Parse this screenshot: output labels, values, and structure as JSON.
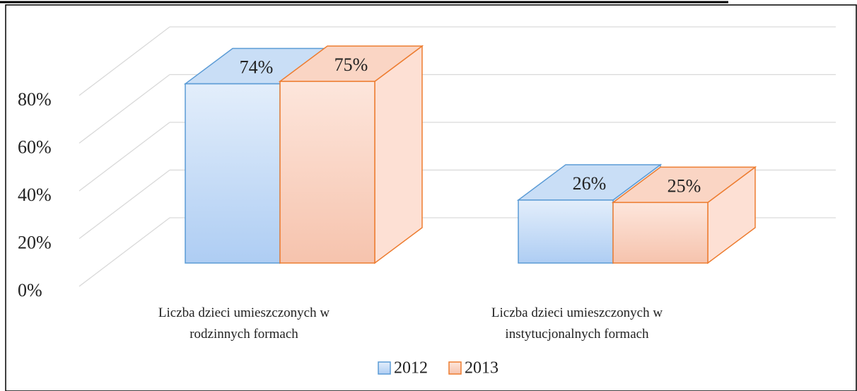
{
  "chart_data": {
    "type": "bar3d",
    "categories": [
      "Liczba dzieci umieszczonych w rodzinnych formach",
      "Liczba dzieci umieszczonych w instytucjonalnych formach"
    ],
    "series": [
      {
        "name": "2012",
        "color": "#5b9bd5",
        "values": [
          74,
          26
        ],
        "value_labels": [
          "74%",
          "26%"
        ]
      },
      {
        "name": "2013",
        "color": "#ed7d31",
        "values": [
          75,
          25
        ],
        "value_labels": [
          "75%",
          "25%"
        ]
      }
    ],
    "ylim": [
      0,
      80
    ],
    "yticks": [
      {
        "value": 0,
        "label": "0%"
      },
      {
        "value": 20,
        "label": "20%"
      },
      {
        "value": 40,
        "label": "40%"
      },
      {
        "value": 60,
        "label": "60%"
      },
      {
        "value": 80,
        "label": "80%"
      }
    ],
    "grid": true,
    "legend": "bottom"
  }
}
